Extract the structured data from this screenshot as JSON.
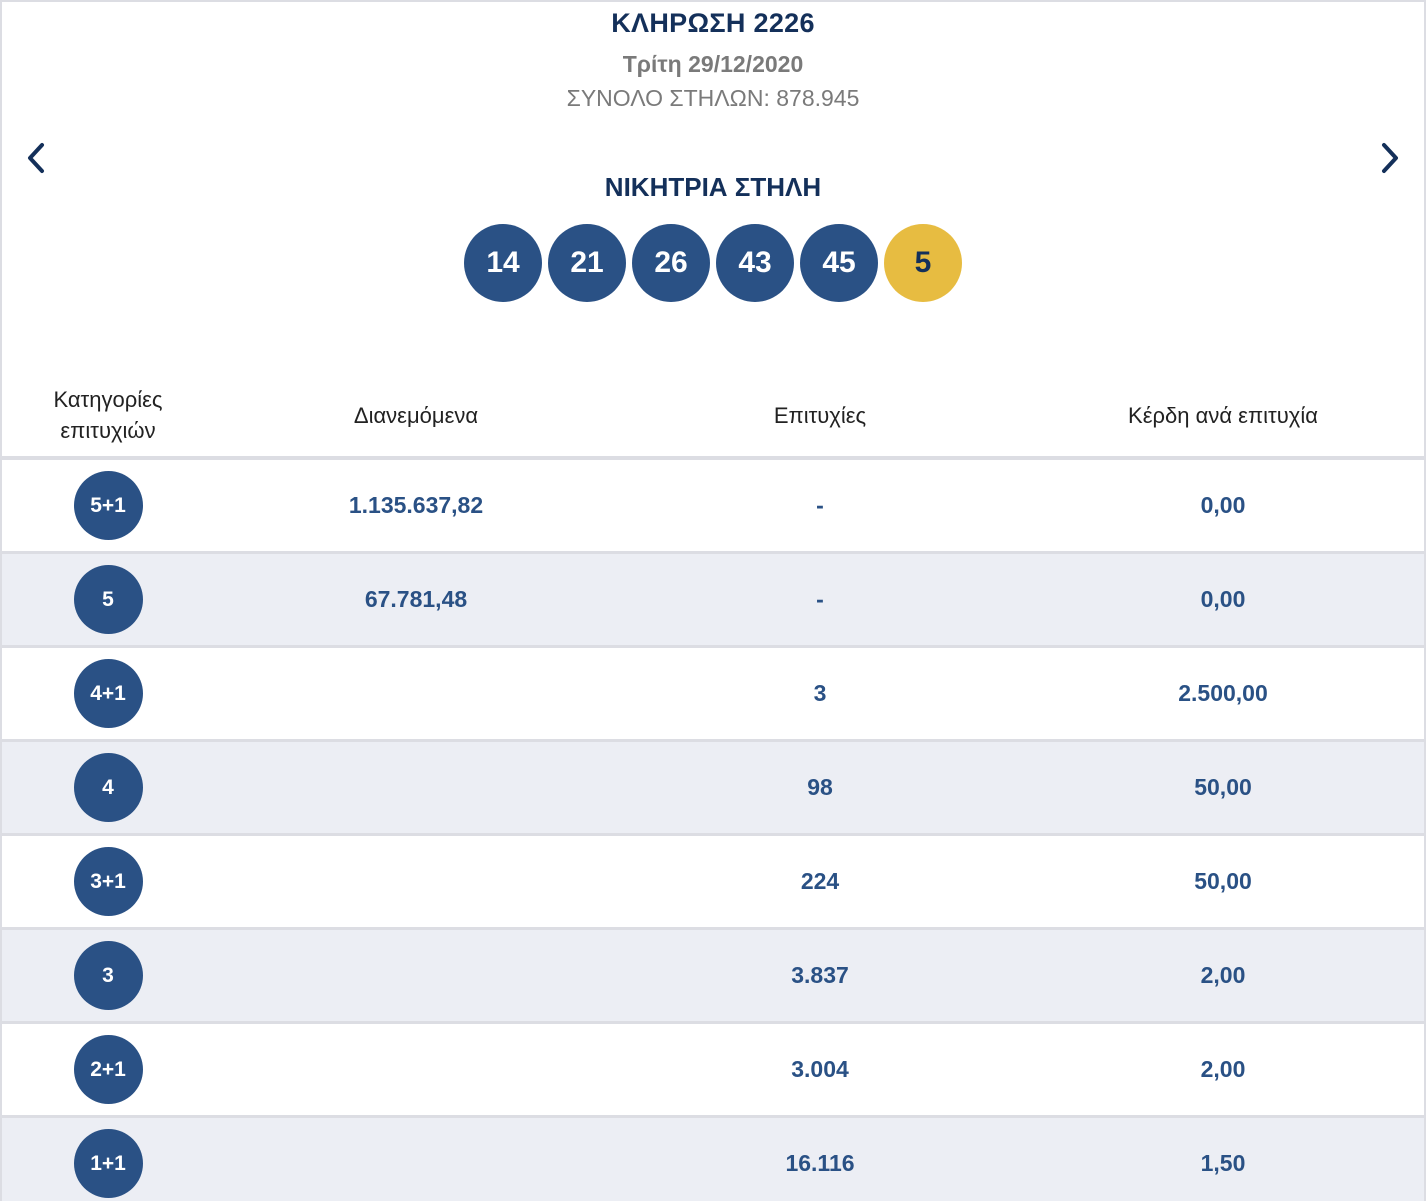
{
  "draw": {
    "title": "ΚΛΗΡΩΣΗ 2226",
    "date": "Τρίτη 29/12/2020",
    "total_columns": "ΣΥΝΟΛΟ ΣΤΗΛΩΝ: 878.945"
  },
  "nav": {
    "prev_icon": "chevron-left-icon",
    "next_icon": "chevron-right-icon"
  },
  "winning": {
    "title": "ΝΙΚΗΤΡΙΑ ΣΤΗΛΗ",
    "numbers": [
      "14",
      "21",
      "26",
      "43",
      "45"
    ],
    "bonus": "5"
  },
  "colors": {
    "navy": "#14305a",
    "ball_blue": "#2a5185",
    "bonus_gold": "#e7bc41",
    "row_alt": "#eceef4"
  },
  "table": {
    "headers": {
      "category_line1": "Κατηγορίες",
      "category_line2": "επιτυχιών",
      "distributed": "Διανεμόμενα",
      "winners": "Επιτυχίες",
      "prize_per_winner": "Κέρδη ανά επιτυχία"
    },
    "rows": [
      {
        "category": "5+1",
        "distributed": "1.135.637,82",
        "winners": "-",
        "prize": "0,00"
      },
      {
        "category": "5",
        "distributed": "67.781,48",
        "winners": "-",
        "prize": "0,00"
      },
      {
        "category": "4+1",
        "distributed": "",
        "winners": "3",
        "prize": "2.500,00"
      },
      {
        "category": "4",
        "distributed": "",
        "winners": "98",
        "prize": "50,00"
      },
      {
        "category": "3+1",
        "distributed": "",
        "winners": "224",
        "prize": "50,00"
      },
      {
        "category": "3",
        "distributed": "",
        "winners": "3.837",
        "prize": "2,00"
      },
      {
        "category": "2+1",
        "distributed": "",
        "winners": "3.004",
        "prize": "2,00"
      },
      {
        "category": "1+1",
        "distributed": "",
        "winners": "16.116",
        "prize": "1,50"
      }
    ]
  }
}
